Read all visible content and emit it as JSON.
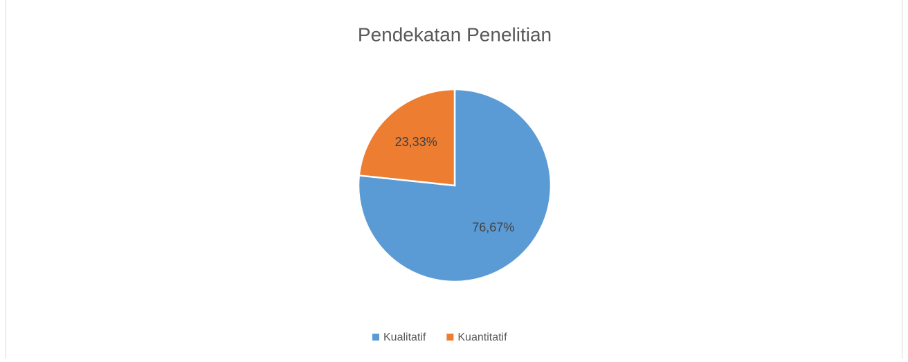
{
  "chart_data": {
    "type": "pie",
    "title": "Pendekatan Penelitian",
    "categories": [
      "Kualitatif",
      "Kuantitatif"
    ],
    "values": [
      76.67,
      23.33
    ],
    "value_labels": [
      "76,67%",
      "23,33%"
    ],
    "colors": [
      "#5b9bd5",
      "#ed7d31"
    ],
    "legend": "bottom"
  }
}
